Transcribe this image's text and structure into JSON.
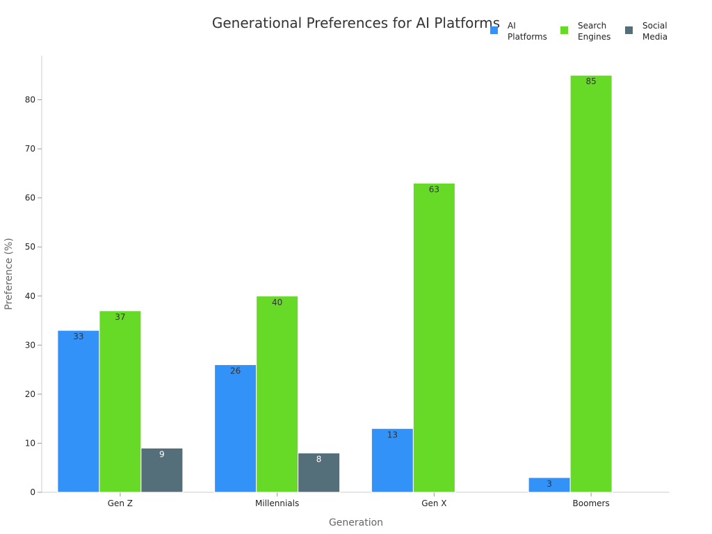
{
  "chart_data": {
    "type": "bar",
    "title": "Generational Preferences for AI Platforms",
    "xlabel": "Generation",
    "ylabel": "Preference (%)",
    "ylim": [
      0,
      89
    ],
    "yticks": [
      0,
      10,
      20,
      30,
      40,
      50,
      60,
      70,
      80
    ],
    "categories": [
      "Gen Z",
      "Millennials",
      "Gen X",
      "Boomers"
    ],
    "legend_position": "top-right",
    "grid": false,
    "series": [
      {
        "name": "AI Platforms",
        "legend_lines": [
          "AI",
          "Platforms"
        ],
        "color": "#3392F8",
        "label_color": "#333333",
        "values": [
          33,
          26,
          13,
          3
        ]
      },
      {
        "name": "Search Engines",
        "legend_lines": [
          "Search",
          "Engines"
        ],
        "color": "#66DA26",
        "label_color": "#333333",
        "values": [
          37,
          40,
          63,
          85
        ]
      },
      {
        "name": "Social Media",
        "legend_lines": [
          "Social",
          "Media"
        ],
        "color": "#546E7A",
        "label_color": "#ffffff",
        "values": [
          9,
          8,
          null,
          null
        ]
      }
    ]
  }
}
